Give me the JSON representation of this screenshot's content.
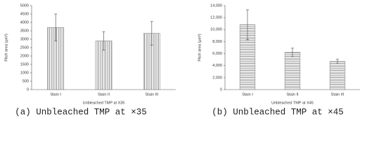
{
  "chart_data": [
    {
      "type": "bar",
      "categories": [
        "Stain I",
        "Stain II",
        "Stain III"
      ],
      "values": [
        3700,
        2900,
        3350
      ],
      "errors": [
        800,
        550,
        700
      ],
      "color": "#777777",
      "hatch": "vertical",
      "ylim": [
        0,
        5000
      ],
      "yticks": [
        0,
        500,
        1000,
        1500,
        2000,
        2500,
        3000,
        3500,
        4000,
        4500,
        5000
      ],
      "ylabel": "Pitch area (μm²)",
      "xlabel": "Unbleached TMP at X35",
      "caption": "(a) Unbleached TMP at ×35"
    },
    {
      "type": "bar",
      "categories": [
        "Stain I",
        "Stain II",
        "Stain III"
      ],
      "values": [
        10800,
        6200,
        4700
      ],
      "errors": [
        2500,
        700,
        350
      ],
      "color": "#777777",
      "hatch": "horizontal",
      "ylim": [
        0,
        14000
      ],
      "yticks": [
        0,
        {
          "value": 2000,
          "label": "2,000"
        },
        {
          "value": 4000,
          "label": "4,000"
        },
        {
          "value": 6000,
          "label": "6,000"
        },
        {
          "value": 8000,
          "label": "8,000"
        },
        {
          "value": 10000,
          "label": "10,000"
        },
        {
          "value": 12000,
          "label": "12,000"
        },
        {
          "value": 14000,
          "label": "14,000"
        }
      ],
      "ylabel": "Pitch area (μm²)",
      "xlabel": "Unbleached TMP at X45",
      "caption": "(b) Unbleached TMP at ×45"
    }
  ]
}
